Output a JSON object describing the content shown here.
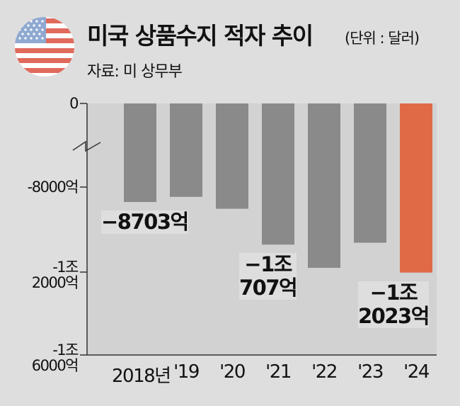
{
  "header": {
    "title": "미국 상품수지 적자 추이",
    "unit": "(단위 : 달러)",
    "source": "자료: 미 상무부",
    "flag_icon": "us-flag-icon"
  },
  "colors": {
    "background": "#dedede",
    "plot_background": "#d2d2d2",
    "bar": "#8a8a8a",
    "highlight_bar": "#e06a46"
  },
  "chart_data": {
    "type": "bar",
    "title": "미국 상품수지 적자 추이",
    "unit": "(단위 : 달러)",
    "categories": [
      "2018년",
      "'19",
      "'20",
      "'21",
      "'22",
      "'23",
      "'24"
    ],
    "values": [
      -8703,
      -8460,
      -9020,
      -10707,
      -11800,
      -10620,
      -12023
    ],
    "value_unit": "억 달러",
    "y_tick_labels": [
      {
        "value": 0,
        "text": "0"
      },
      {
        "value": -8000,
        "text": "-8000억"
      },
      {
        "value": -12000,
        "text": "-1조\n2000억"
      },
      {
        "value": -16000,
        "text": "-1조\n6000억"
      }
    ],
    "axis_break": "between 0 and -8000",
    "highlight_index": 6,
    "data_labels": [
      {
        "index": 0,
        "text": "−8703억"
      },
      {
        "index": 3,
        "text": "−1조\n707억"
      },
      {
        "index": 6,
        "text": "−1조\n2023억"
      }
    ],
    "grid": false,
    "legend": "none"
  }
}
